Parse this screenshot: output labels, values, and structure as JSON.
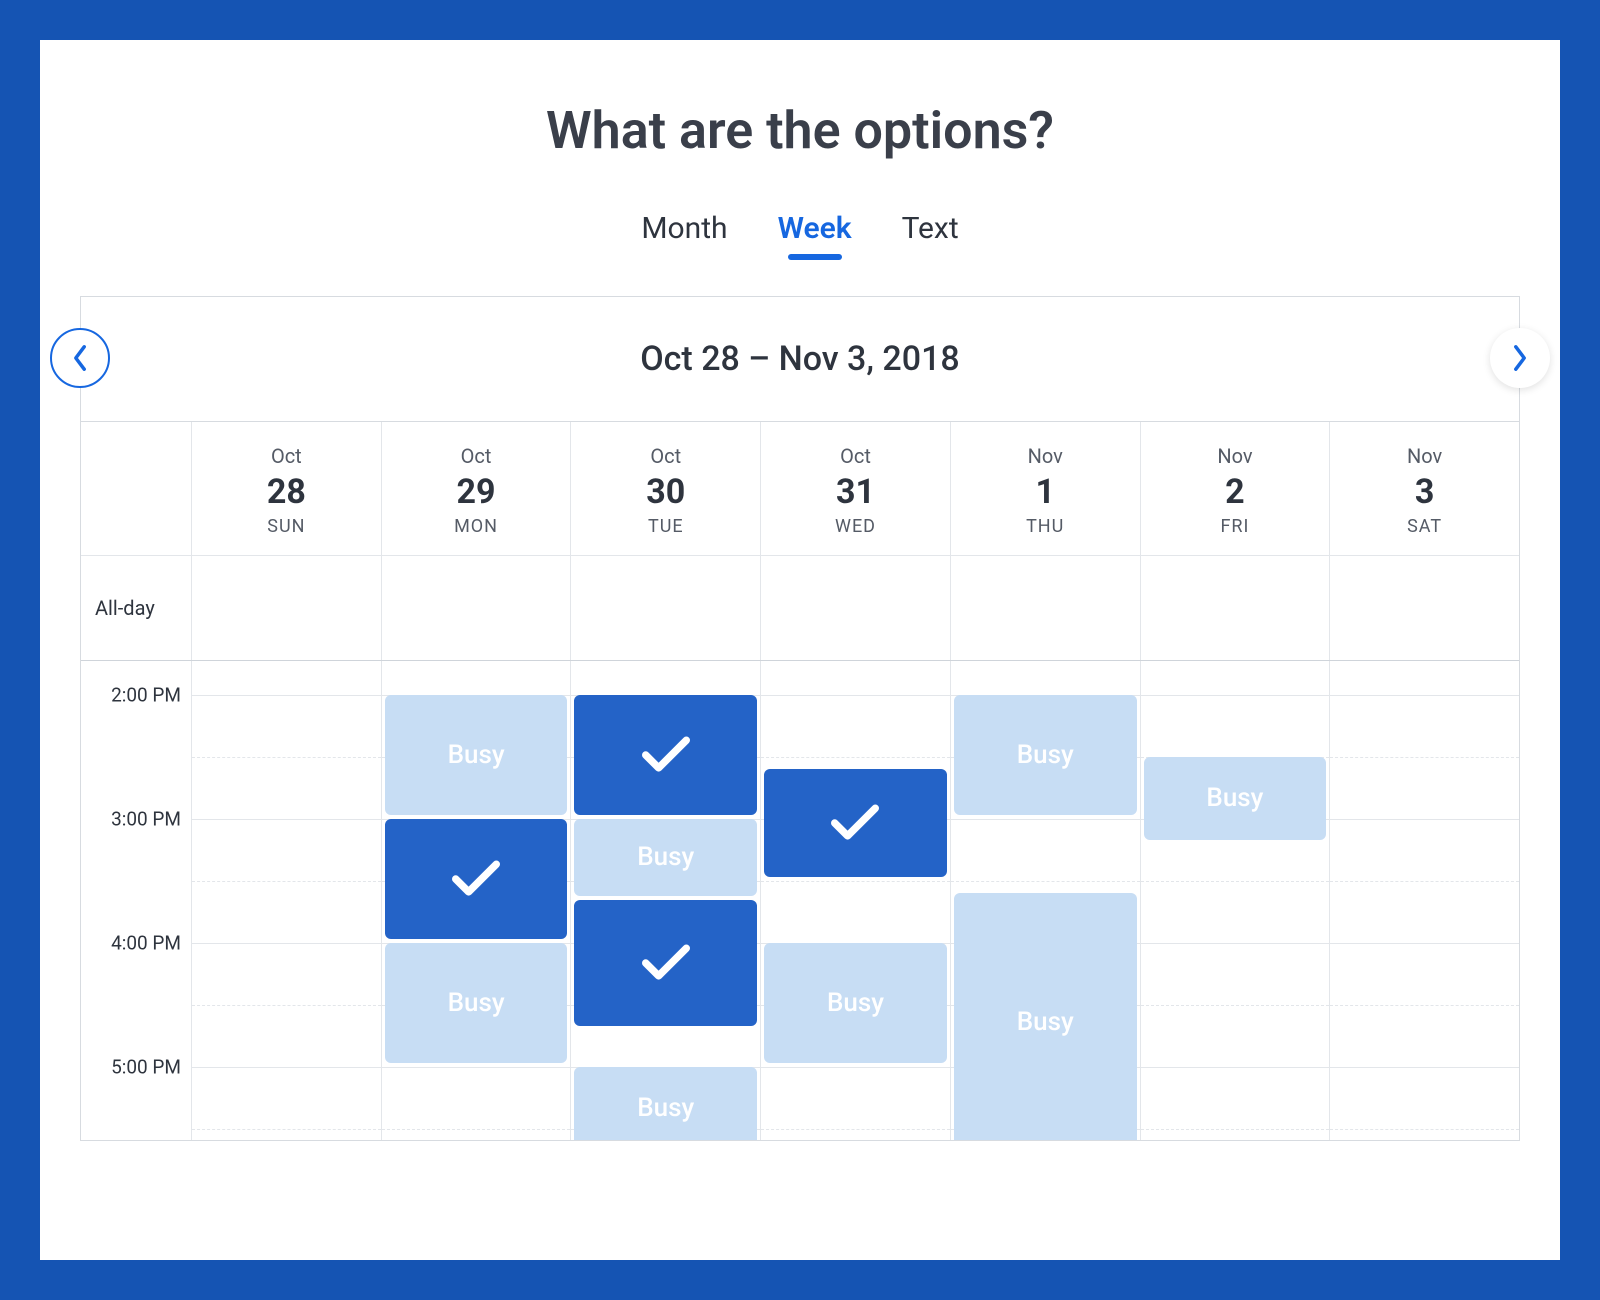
{
  "title": "What are the options?",
  "tabs": [
    {
      "label": "Month",
      "active": false
    },
    {
      "label": "Week",
      "active": true
    },
    {
      "label": "Text",
      "active": false
    }
  ],
  "dateRange": "Oct 28 – Nov 3, 2018",
  "alldayLabel": "All-day",
  "days": [
    {
      "month": "Oct",
      "num": "28",
      "dow": "SUN"
    },
    {
      "month": "Oct",
      "num": "29",
      "dow": "MON"
    },
    {
      "month": "Oct",
      "num": "30",
      "dow": "TUE"
    },
    {
      "month": "Oct",
      "num": "31",
      "dow": "WED"
    },
    {
      "month": "Nov",
      "num": "1",
      "dow": "THU"
    },
    {
      "month": "Nov",
      "num": "2",
      "dow": "FRI"
    },
    {
      "month": "Nov",
      "num": "3",
      "dow": "SAT"
    }
  ],
  "timeLabels": [
    "2:00 PM",
    "3:00 PM",
    "4:00 PM",
    "5:00 PM"
  ],
  "timeStartHour": 14,
  "hourHeightPx": 124,
  "colors": {
    "frame": "#1554b3",
    "accent": "#1667e0",
    "busyBg": "#c7ddf4",
    "selectedBg": "#2463c7",
    "border": "#d7dbe0",
    "gridBorder": "#e3e6ea",
    "text": "#2e343e"
  },
  "busyLabel": "Busy",
  "events": [
    {
      "dayIndex": 1,
      "startHour": 14.0,
      "endHour": 15.0,
      "type": "busy"
    },
    {
      "dayIndex": 1,
      "startHour": 15.0,
      "endHour": 16.0,
      "type": "selected"
    },
    {
      "dayIndex": 1,
      "startHour": 16.0,
      "endHour": 17.0,
      "type": "busy"
    },
    {
      "dayIndex": 2,
      "startHour": 14.0,
      "endHour": 15.0,
      "type": "selected"
    },
    {
      "dayIndex": 2,
      "startHour": 15.0,
      "endHour": 15.65,
      "type": "busy"
    },
    {
      "dayIndex": 2,
      "startHour": 15.65,
      "endHour": 16.7,
      "type": "selected"
    },
    {
      "dayIndex": 2,
      "startHour": 17.0,
      "endHour": 17.7,
      "type": "busy"
    },
    {
      "dayIndex": 3,
      "startHour": 14.6,
      "endHour": 15.5,
      "type": "selected"
    },
    {
      "dayIndex": 3,
      "startHour": 16.0,
      "endHour": 17.0,
      "type": "busy"
    },
    {
      "dayIndex": 4,
      "startHour": 14.0,
      "endHour": 15.0,
      "type": "busy"
    },
    {
      "dayIndex": 4,
      "startHour": 15.6,
      "endHour": 17.7,
      "type": "busy"
    },
    {
      "dayIndex": 5,
      "startHour": 14.5,
      "endHour": 15.2,
      "type": "busy"
    }
  ]
}
